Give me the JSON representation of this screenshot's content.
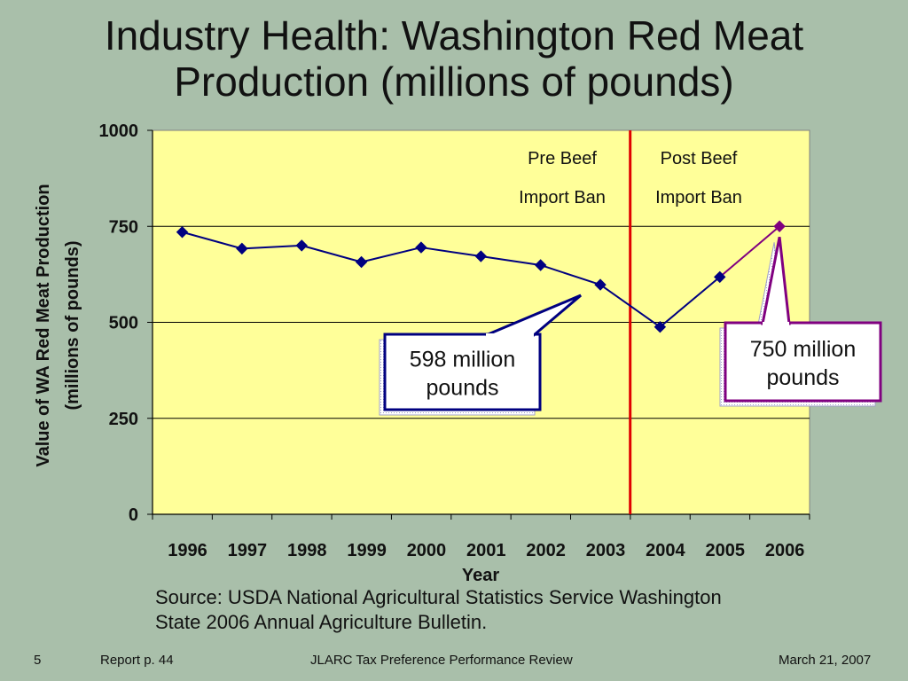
{
  "title_line1": "Industry Health: Washington Red Meat",
  "title_line2": "Production (millions of pounds)",
  "chart_data": {
    "type": "line",
    "categories": [
      "1996",
      "1997",
      "1998",
      "1999",
      "2000",
      "2001",
      "2002",
      "2003",
      "2004",
      "2005",
      "2006"
    ],
    "series": [
      {
        "values": [
          735,
          692,
          700,
          657,
          695,
          672,
          649,
          598,
          488,
          618,
          750
        ]
      }
    ],
    "ylim": [
      0,
      1000
    ],
    "yticks": [
      "0",
      "250",
      "500",
      "750",
      "1000"
    ],
    "xlabel": "Year",
    "ylabel_line1": "Value of WA Red Meat Production",
    "ylabel_line2": "(millions of pounds)",
    "grid": true,
    "plot_background": "#ffff99",
    "line_color_pre": "#000080",
    "line_color_post": "#800080",
    "divider_color": "#e00000",
    "divider_between": [
      "2003",
      "2004"
    ],
    "annotations": {
      "pre_line1": "Pre Beef",
      "pre_line2": "Import Ban",
      "post_line1": "Post Beef",
      "post_line2": "Import Ban",
      "callout_left_line1": "598 million",
      "callout_left_line2": "pounds",
      "callout_left_points_to": "2003",
      "callout_right_line1": "750 million",
      "callout_right_line2": "pounds",
      "callout_right_points_to": "2006"
    }
  },
  "source_line1": "Source: USDA National Agricultural Statistics Service Washington",
  "source_line2": "State 2006 Annual Agriculture Bulletin.",
  "footer": {
    "slide_number": "5",
    "report_ref": "Report  p. 44",
    "center": "JLARC Tax Preference Performance Review",
    "date": "March 21, 2007"
  }
}
